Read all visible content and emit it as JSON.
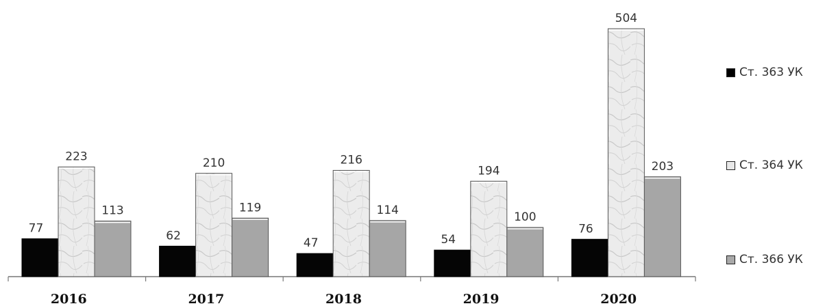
{
  "chart_data": {
    "type": "bar",
    "categories": [
      "2016",
      "2017",
      "2018",
      "2019",
      "2020"
    ],
    "series": [
      {
        "name": "Ст. 363 УК",
        "values": [
          77,
          62,
          47,
          54,
          76
        ],
        "color": "#000000"
      },
      {
        "name": "Ст. 364 УК",
        "values": [
          223,
          210,
          216,
          194,
          504
        ],
        "color": "#e4e4e4"
      },
      {
        "name": "Ст. 366 УК",
        "values": [
          113,
          119,
          114,
          100,
          203
        ],
        "color": "#a9a9a9"
      }
    ],
    "ylim": [
      0,
      504
    ],
    "grid": false,
    "legend_position": "right"
  }
}
